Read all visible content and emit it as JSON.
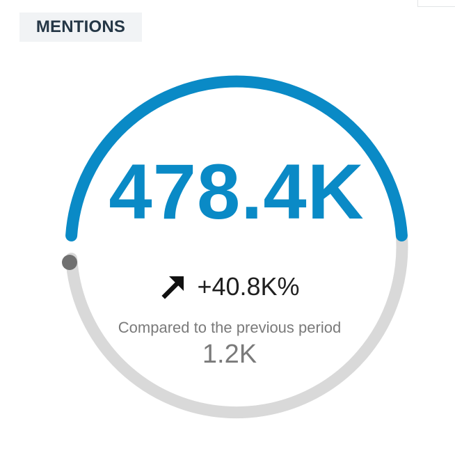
{
  "widget": {
    "title": "MENTIONS",
    "value": "478.4K",
    "change": "+40.8K%",
    "change_direction_icon": "arrow-up-right-icon",
    "compare_label": "Compared to the previous period",
    "previous_value": "1.2K"
  },
  "gauge": {
    "fill_fraction": 0.5,
    "accent_color": "#0a8ac6",
    "track_color": "#d9d9d9",
    "marker_color": "#707070"
  },
  "colors": {
    "title_text": "#253746",
    "title_background": "#f1f3f5",
    "change_text": "#1f1f1f",
    "muted_text": "#7a7a7a"
  }
}
